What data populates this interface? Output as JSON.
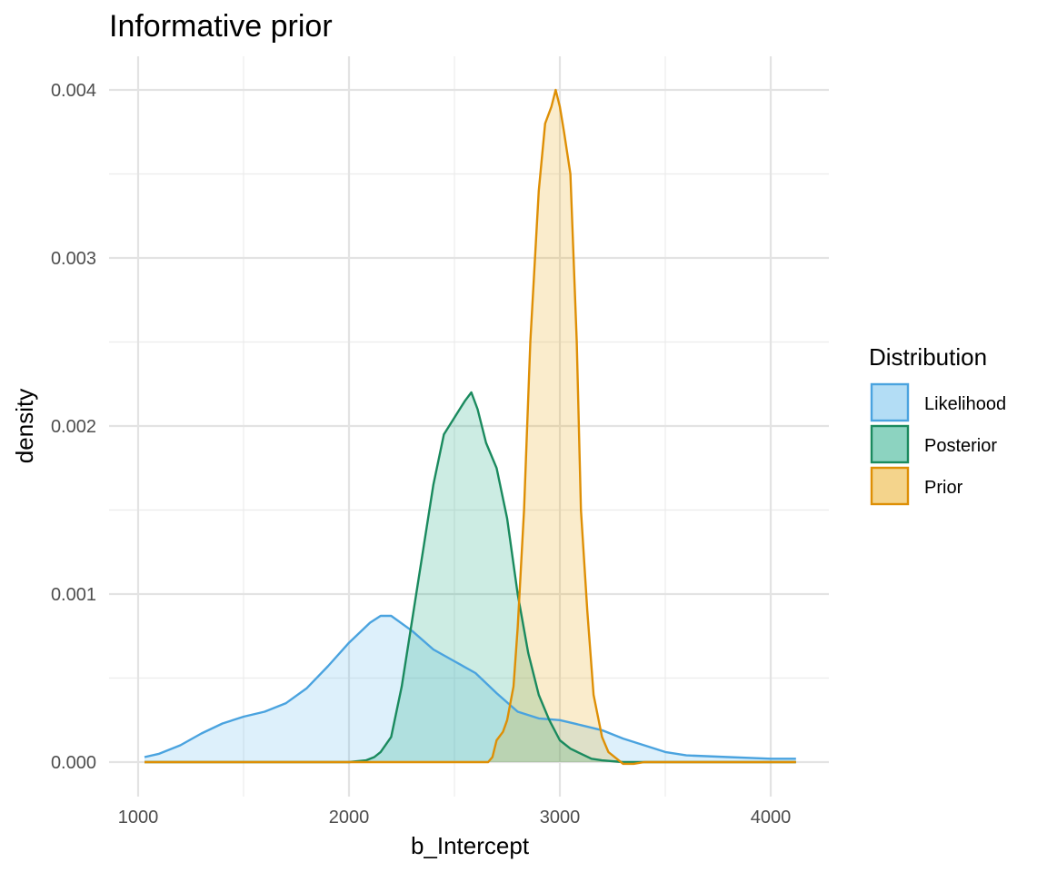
{
  "chart_data": {
    "type": "area",
    "title": "Informative prior",
    "xlabel": "b_Intercept",
    "ylabel": "density",
    "xlim": [
      1000,
      4130
    ],
    "ylim": [
      -0.00013,
      0.0041
    ],
    "x_ticks": [
      1000,
      2000,
      3000,
      4000
    ],
    "x_tick_labels": [
      "1000",
      "2000",
      "3000",
      "4000"
    ],
    "y_ticks": [
      0.0,
      0.001,
      0.002,
      0.003,
      0.004
    ],
    "y_tick_labels": [
      "0.000",
      "0.001",
      "0.002",
      "0.003",
      "0.004"
    ],
    "grid": true,
    "legend": {
      "title": "Distribution",
      "position": "right"
    },
    "series": [
      {
        "name": "Likelihood",
        "line_color": "#4aa3df",
        "fill_color": "#56B4E9",
        "points": [
          [
            1030,
            3e-05
          ],
          [
            1100,
            5e-05
          ],
          [
            1200,
            0.0001
          ],
          [
            1300,
            0.00017
          ],
          [
            1400,
            0.00023
          ],
          [
            1500,
            0.00027
          ],
          [
            1600,
            0.0003
          ],
          [
            1700,
            0.00035
          ],
          [
            1800,
            0.00044
          ],
          [
            1900,
            0.00057
          ],
          [
            2000,
            0.00071
          ],
          [
            2100,
            0.00083
          ],
          [
            2150,
            0.00087
          ],
          [
            2200,
            0.00087
          ],
          [
            2300,
            0.00078
          ],
          [
            2400,
            0.00067
          ],
          [
            2500,
            0.0006
          ],
          [
            2600,
            0.00053
          ],
          [
            2700,
            0.00041
          ],
          [
            2800,
            0.0003
          ],
          [
            2900,
            0.00026
          ],
          [
            3000,
            0.00025
          ],
          [
            3100,
            0.00022
          ],
          [
            3200,
            0.00019
          ],
          [
            3300,
            0.00014
          ],
          [
            3400,
            0.0001
          ],
          [
            3500,
            6e-05
          ],
          [
            3600,
            4e-05
          ],
          [
            3800,
            3e-05
          ],
          [
            4000,
            2e-05
          ],
          [
            4120,
            2e-05
          ]
        ]
      },
      {
        "name": "Posterior",
        "line_color": "#1a8a5e",
        "fill_color": "#009E73",
        "points": [
          [
            1030,
            0.0
          ],
          [
            1800,
            0.0
          ],
          [
            2000,
            0.0
          ],
          [
            2080,
            1e-05
          ],
          [
            2120,
            3e-05
          ],
          [
            2150,
            6e-05
          ],
          [
            2200,
            0.00015
          ],
          [
            2250,
            0.00045
          ],
          [
            2300,
            0.00085
          ],
          [
            2350,
            0.00125
          ],
          [
            2400,
            0.00165
          ],
          [
            2450,
            0.00195
          ],
          [
            2500,
            0.00205
          ],
          [
            2550,
            0.00215
          ],
          [
            2580,
            0.0022
          ],
          [
            2610,
            0.0021
          ],
          [
            2650,
            0.0019
          ],
          [
            2700,
            0.00175
          ],
          [
            2750,
            0.00145
          ],
          [
            2800,
            0.001
          ],
          [
            2850,
            0.00065
          ],
          [
            2900,
            0.0004
          ],
          [
            2950,
            0.00025
          ],
          [
            3000,
            0.00013
          ],
          [
            3050,
            8e-05
          ],
          [
            3100,
            5e-05
          ],
          [
            3150,
            2e-05
          ],
          [
            3200,
            1e-05
          ],
          [
            3300,
            0.0
          ],
          [
            4120,
            0.0
          ]
        ]
      },
      {
        "name": "Prior",
        "line_color": "#de8f05",
        "fill_color": "#E69F00",
        "points": [
          [
            1030,
            0.0
          ],
          [
            2600,
            0.0
          ],
          [
            2660,
            0.0
          ],
          [
            2680,
            3e-05
          ],
          [
            2700,
            0.00013
          ],
          [
            2730,
            0.00018
          ],
          [
            2750,
            0.00025
          ],
          [
            2780,
            0.00045
          ],
          [
            2800,
            0.0008
          ],
          [
            2830,
            0.0015
          ],
          [
            2860,
            0.0025
          ],
          [
            2900,
            0.0034
          ],
          [
            2930,
            0.0038
          ],
          [
            2960,
            0.0039
          ],
          [
            2980,
            0.004
          ],
          [
            3000,
            0.0039
          ],
          [
            3020,
            0.00375
          ],
          [
            3050,
            0.0035
          ],
          [
            3080,
            0.0025
          ],
          [
            3100,
            0.0015
          ],
          [
            3130,
            0.0009
          ],
          [
            3160,
            0.0004
          ],
          [
            3200,
            0.00015
          ],
          [
            3230,
            6e-05
          ],
          [
            3270,
            2e-05
          ],
          [
            3300,
            -1e-05
          ],
          [
            3350,
            -1e-05
          ],
          [
            3400,
            0.0
          ],
          [
            4120,
            0.0
          ]
        ]
      }
    ]
  }
}
